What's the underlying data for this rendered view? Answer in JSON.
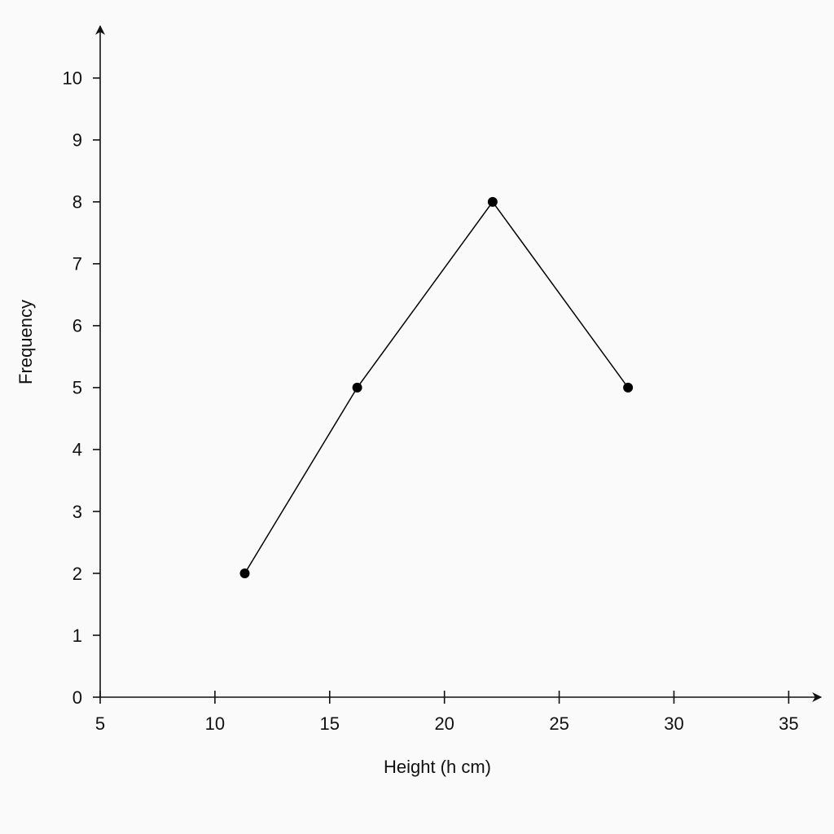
{
  "chart_data": {
    "type": "line",
    "x_label": "Height (h cm)",
    "y_label": "Frequency",
    "x": [
      11.3,
      16.2,
      22.1,
      28.0
    ],
    "values": [
      2,
      5,
      8,
      5
    ],
    "color": "#000000",
    "xlim": [
      5,
      36.3
    ],
    "xticks": [
      5,
      10,
      15,
      20,
      25,
      30,
      35
    ],
    "ylim": [
      0,
      10.8
    ],
    "yticks": [
      0,
      1,
      2,
      3,
      4,
      5,
      6,
      7,
      8,
      9,
      10
    ],
    "markers": true
  }
}
